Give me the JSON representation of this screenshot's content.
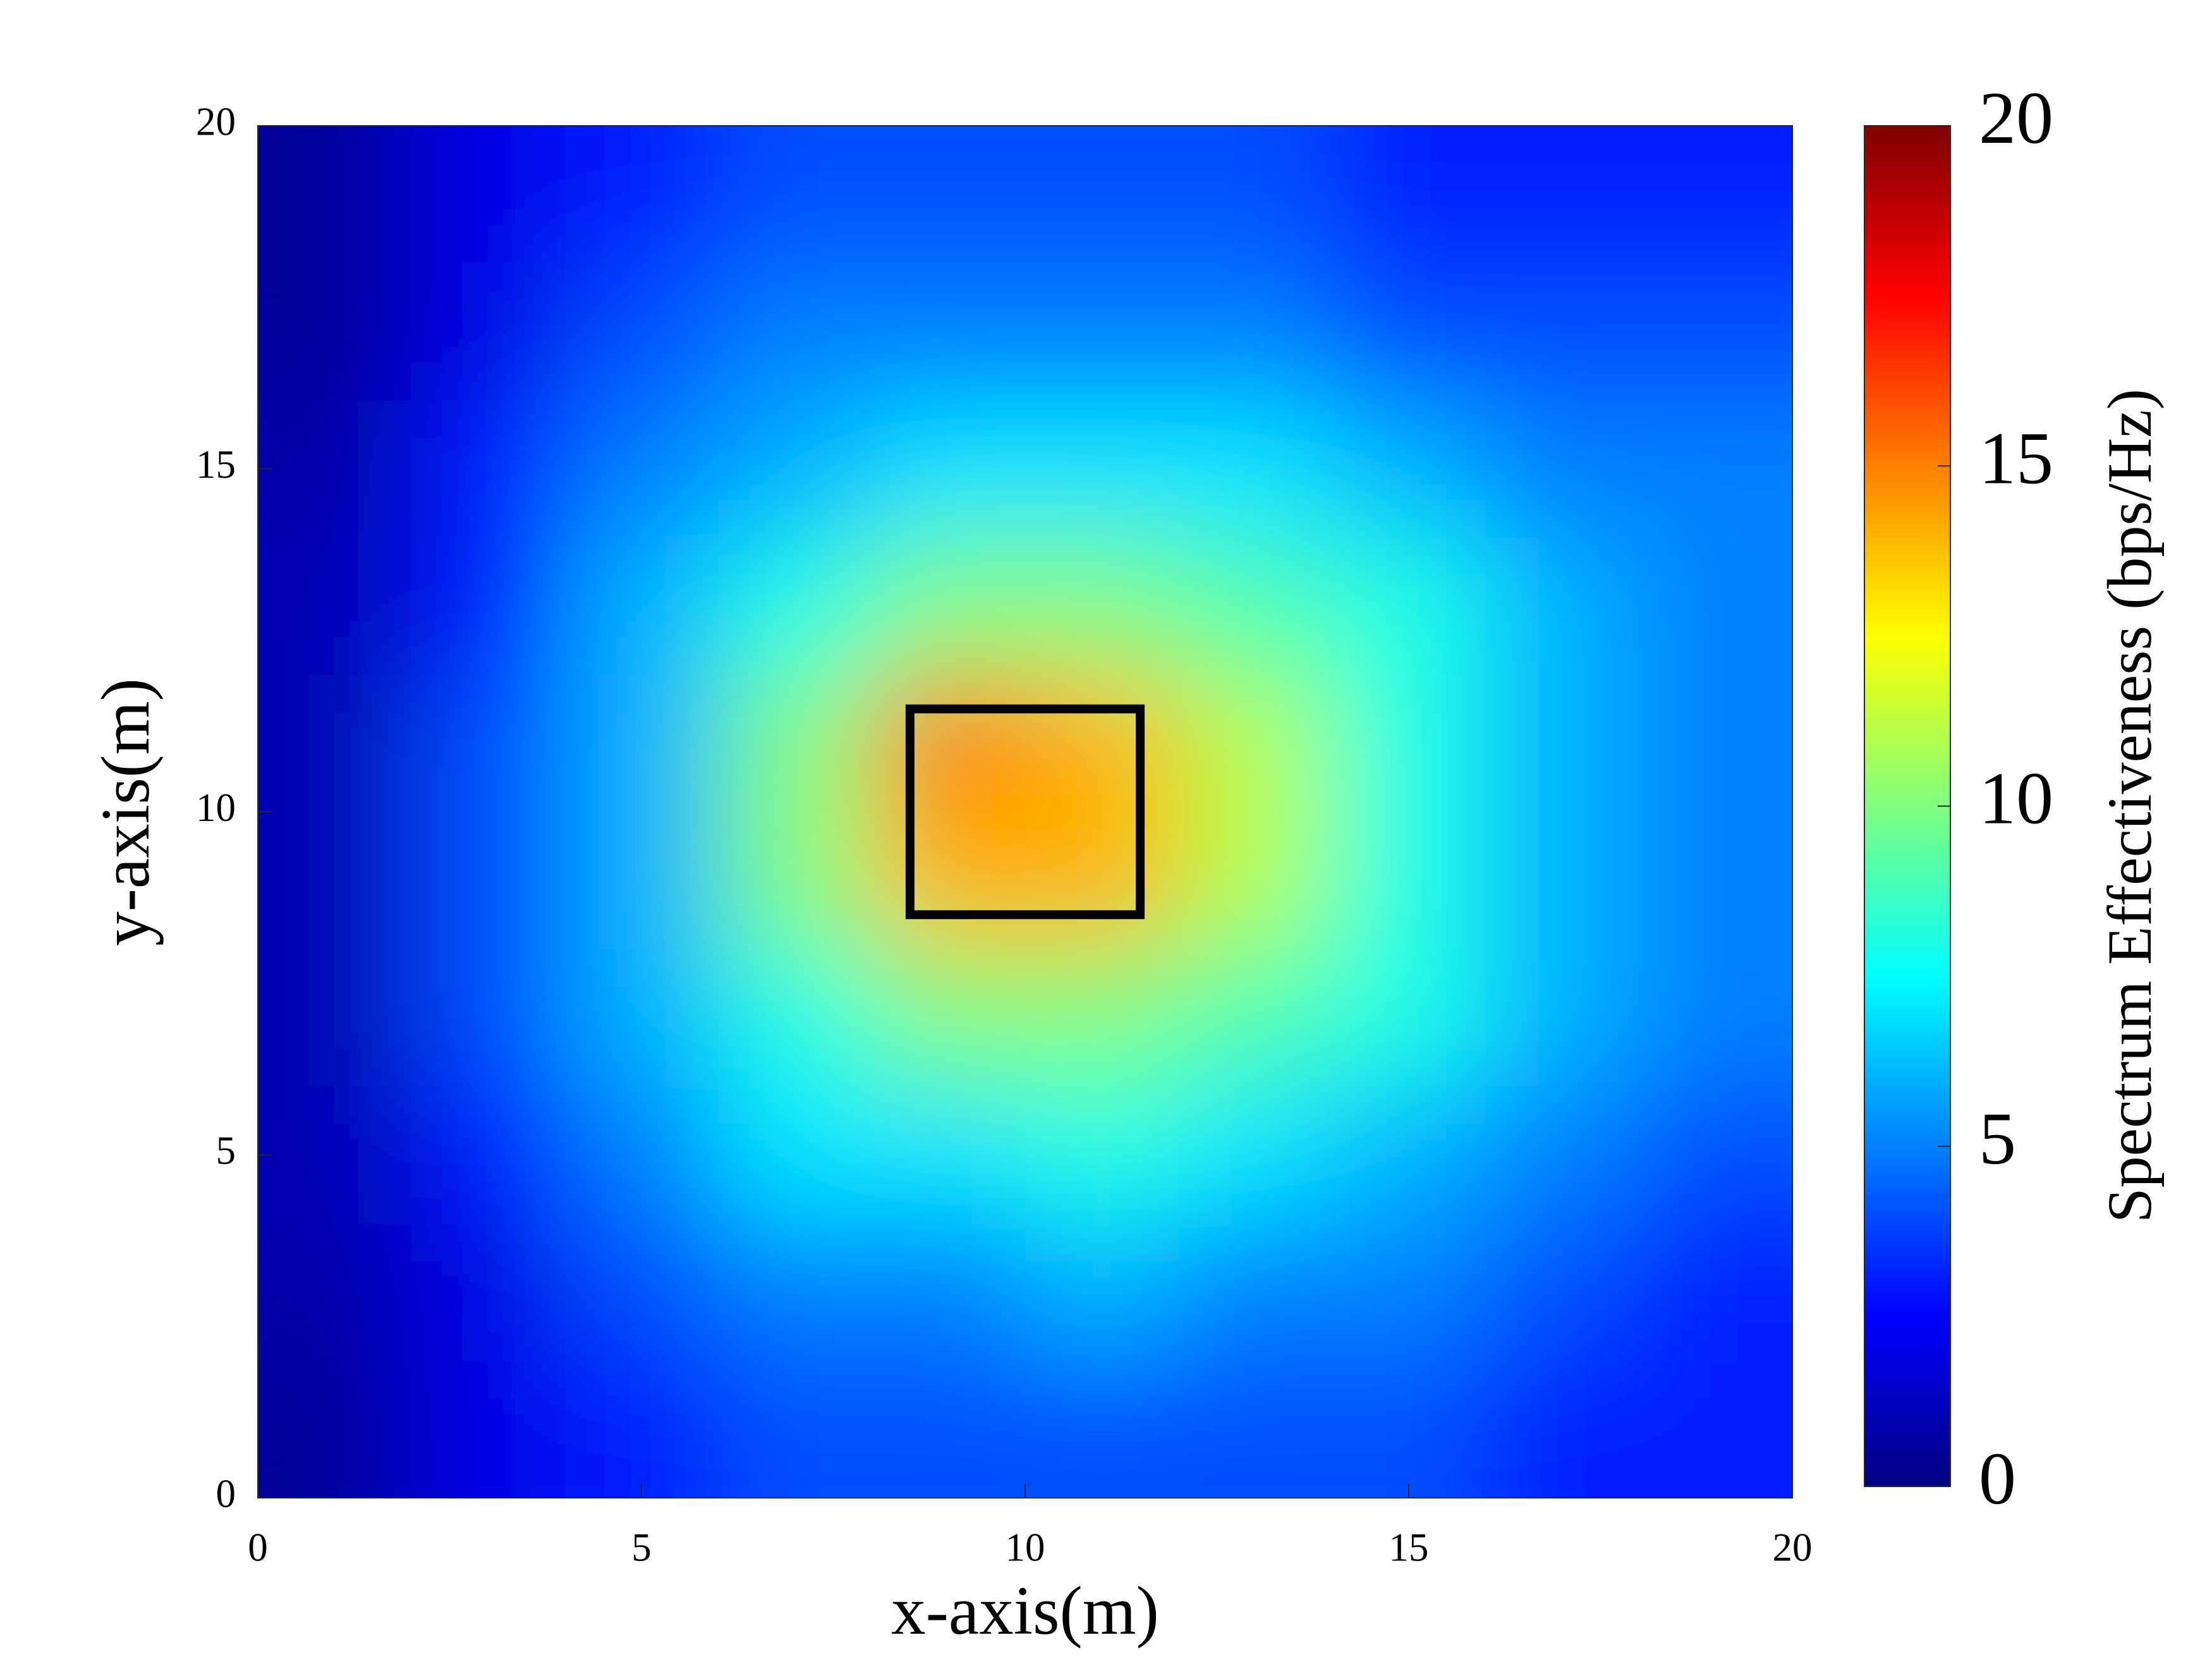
{
  "chart_data": {
    "type": "heatmap",
    "x_label": "x-axis(m)",
    "y_label": "y-axis(m)",
    "colorbar_label": "Spectrum Effectiveness (bps/Hz)",
    "colormap": "jet",
    "xlim": [
      0,
      20
    ],
    "ylim": [
      0,
      20
    ],
    "xticks": [
      0,
      5,
      10,
      15,
      20
    ],
    "yticks": [
      0,
      5,
      10,
      15,
      20
    ],
    "x": [
      1,
      3,
      5,
      7,
      9,
      11,
      13,
      15,
      17,
      19
    ],
    "y": [
      19,
      17,
      15,
      13,
      11,
      9,
      7,
      5,
      3,
      1
    ],
    "z": [
      [
        0.5,
        2,
        3,
        4,
        4,
        4,
        4,
        3,
        3,
        3
      ],
      [
        0.5,
        2,
        4,
        5,
        5,
        5,
        5,
        4,
        4,
        4
      ],
      [
        0.8,
        3,
        5,
        6,
        7,
        7,
        7,
        6,
        5,
        5
      ],
      [
        1,
        3,
        6,
        8,
        10,
        10,
        9,
        8,
        6,
        5
      ],
      [
        1,
        4,
        6,
        10,
        15,
        14,
        11,
        8,
        6,
        5
      ],
      [
        1,
        4,
        6,
        10,
        14,
        14,
        11,
        8,
        6,
        5
      ],
      [
        1,
        4,
        6,
        8,
        10,
        10,
        9,
        8,
        6,
        5
      ],
      [
        1,
        3,
        5,
        7,
        7,
        8,
        7,
        6,
        5,
        4
      ],
      [
        0.8,
        2,
        4,
        5,
        5,
        6,
        5,
        5,
        4,
        3
      ],
      [
        0.5,
        2,
        3,
        4,
        4,
        4,
        4,
        4,
        3,
        3
      ]
    ],
    "clim": [
      0,
      20
    ],
    "cticks": [
      0,
      5,
      10,
      15,
      20
    ],
    "box": {
      "x": [
        8.5,
        11.5
      ],
      "y": [
        8.5,
        11.5
      ],
      "color": "#000000"
    }
  }
}
